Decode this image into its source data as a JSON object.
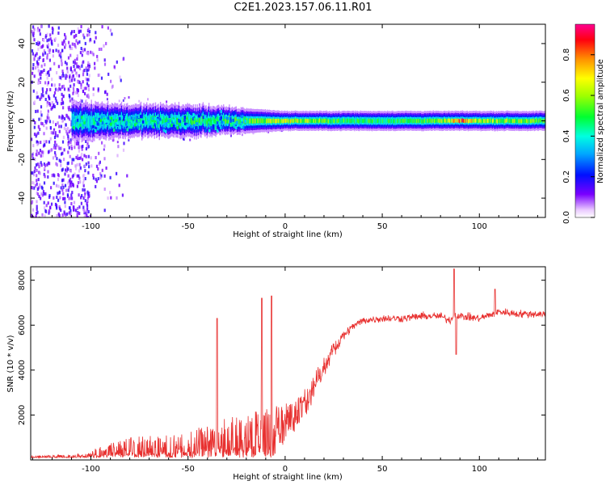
{
  "title": "C2E1.2023.157.06.11.R01",
  "chart_data": [
    {
      "type": "heatmap",
      "xlabel": "Height of straight line (km)",
      "ylabel": "Frequency (Hz)",
      "xlim": [
        -131,
        134
      ],
      "ylim": [
        -50,
        50
      ],
      "xticks": [
        -100,
        -50,
        0,
        50,
        100
      ],
      "yticks": [
        -40,
        -20,
        0,
        20,
        40
      ],
      "description_band": {
        "center_frequency_hz": 0,
        "x": [
          -110,
          -80,
          -50,
          -25,
          0,
          25,
          50,
          80,
          90,
          100,
          134
        ],
        "band_halfwidth_hz": [
          6,
          5,
          5,
          4,
          3,
          3,
          3,
          3,
          3,
          3,
          3
        ],
        "peak_amplitude": [
          0.45,
          0.5,
          0.55,
          0.6,
          0.75,
          0.6,
          0.55,
          0.65,
          0.95,
          0.7,
          0.6
        ]
      },
      "colorbar": {
        "label": "Normalized spectral amplitude",
        "range": [
          0.0,
          0.95
        ],
        "ticks": [
          "0.0",
          "0.2",
          "0.4",
          "0.6",
          "0.8"
        ]
      }
    },
    {
      "type": "line",
      "xlabel": "Height of straight line (km)",
      "ylabel": "SNR (10 * v/v)",
      "xlim": [
        -131,
        134
      ],
      "ylim": [
        0,
        8600
      ],
      "xticks": [
        -100,
        -50,
        0,
        50,
        100
      ],
      "yticks": [
        2000,
        4000,
        6000,
        8000
      ],
      "series": [
        {
          "name": "SNR",
          "color": "#e8302f",
          "envelope_x": [
            -131,
            -110,
            -100,
            -90,
            -80,
            -70,
            -60,
            -50,
            -40,
            -30,
            -20,
            -10,
            0,
            10,
            20,
            30,
            40,
            50,
            60,
            70,
            80,
            85,
            87,
            90,
            100,
            107,
            110,
            120,
            134
          ],
          "envelope_y": [
            100,
            150,
            400,
            700,
            1000,
            1100,
            1100,
            1300,
            1700,
            2000,
            2200,
            2400,
            2400,
            3000,
            4500,
            5700,
            6200,
            6300,
            6300,
            6400,
            6400,
            6200,
            6500,
            6400,
            6300,
            6500,
            6600,
            6500,
            6500
          ],
          "spikes": [
            {
              "x": -35,
              "y": 6300
            },
            {
              "x": -12,
              "y": 7200
            },
            {
              "x": -7,
              "y": 7300
            },
            {
              "x": 87,
              "y": 8500
            },
            {
              "x": 88,
              "y": 4700
            },
            {
              "x": 108,
              "y": 7600
            }
          ]
        }
      ]
    }
  ]
}
